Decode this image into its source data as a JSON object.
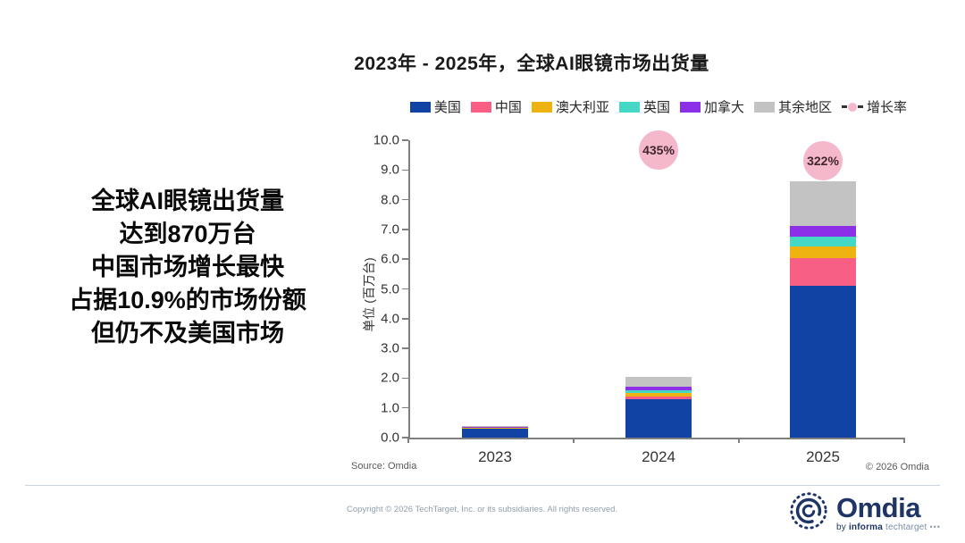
{
  "slide": {
    "title": "2023年 - 2025年，全球AI眼镜市场出货量",
    "headline_lines": [
      "全球AI眼镜出货量",
      "达到870万台",
      "中国市场增长最快",
      "占据10.9%的市场份额",
      "但仍不及美国市场"
    ],
    "source_note": "Source: Omdia",
    "chart_copyright": "© 2026 Omdia",
    "footer_copyright": "Copyright © 2026 TechTarget, Inc. or its subsidiaries. All rights reserved.",
    "logo": {
      "name": "Omdia",
      "tagline_by": "by",
      "tagline_informa": "informa",
      "tagline_techtarget": "techtarget",
      "tagline_dots": "•••",
      "brand_color": "#1e3565"
    }
  },
  "chart_data": {
    "type": "bar",
    "stacked": true,
    "title": "2023年 - 2025年，全球AI眼镜市场出货量",
    "categories": [
      "2023",
      "2024",
      "2025"
    ],
    "unit_label": "单位 (百万台)",
    "xlabel": "",
    "ylabel": "单位 (百万台)",
    "ylim": [
      0,
      10
    ],
    "ytick_step": 1.0,
    "grid": false,
    "legend_position": "top-right",
    "series": [
      {
        "key": "us",
        "name": "美国",
        "color": "#1143a5",
        "values": [
          0.32,
          1.3,
          5.1
        ]
      },
      {
        "key": "china",
        "name": "中国",
        "color": "#f75f84",
        "values": [
          0.01,
          0.09,
          0.95
        ]
      },
      {
        "key": "australia",
        "name": "澳大利亚",
        "color": "#eeb211",
        "values": [
          0.01,
          0.12,
          0.37
        ]
      },
      {
        "key": "uk",
        "name": "英国",
        "color": "#45d9c5",
        "values": [
          0.01,
          0.08,
          0.33
        ]
      },
      {
        "key": "canada",
        "name": "加拿大",
        "color": "#8c30e8",
        "values": [
          0.01,
          0.12,
          0.37
        ]
      },
      {
        "key": "rest",
        "name": "其余地区",
        "color": "#c3c3c3",
        "values": [
          0.02,
          0.34,
          1.5
        ]
      }
    ],
    "totals": [
      0.38,
      2.05,
      8.62
    ],
    "growth_series": {
      "name": "增长率",
      "marker_color": "#f5b8ca",
      "labels": [
        null,
        "435%",
        "322%"
      ],
      "values_percent": [
        null,
        435,
        322
      ]
    }
  }
}
